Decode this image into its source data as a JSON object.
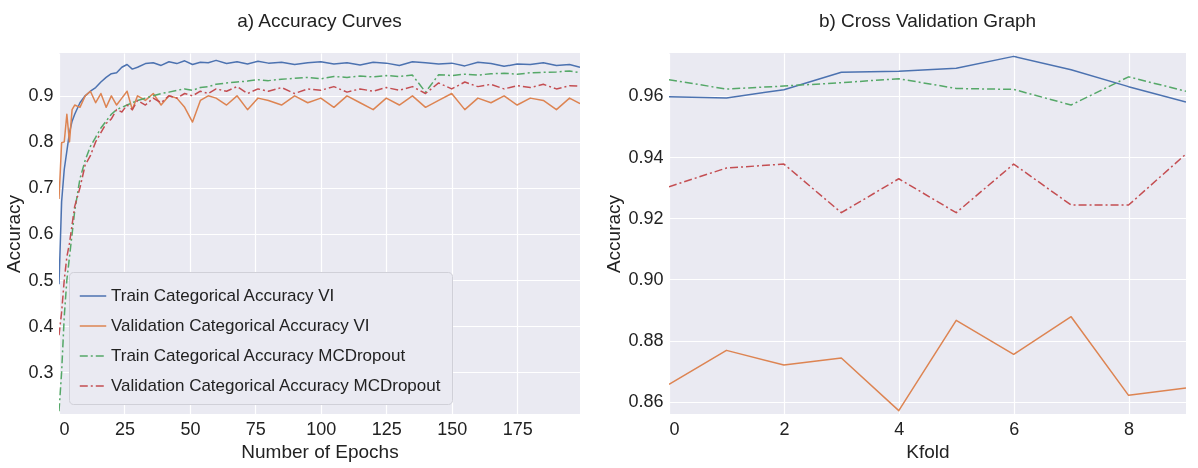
{
  "chart_data": [
    {
      "type": "line",
      "title": "a) Accuracy Curves",
      "xlabel": "Number of Epochs",
      "ylabel": "Accuracy",
      "x": [
        0,
        1,
        2,
        3,
        4,
        5,
        6,
        8,
        10,
        12,
        14,
        16,
        18,
        20,
        22,
        24,
        26,
        28,
        30,
        33,
        36,
        39,
        42,
        45,
        48,
        51,
        54,
        57,
        60,
        64,
        68,
        72,
        76,
        80,
        85,
        90,
        95,
        100,
        105,
        110,
        115,
        120,
        125,
        130,
        135,
        140,
        145,
        150,
        155,
        160,
        165,
        170,
        175,
        180,
        185,
        190,
        195,
        199
      ],
      "series": [
        {
          "name": "Train Categorical Accuracy VI",
          "color": "#4c72b0",
          "line_style": "solid",
          "values": [
            0.491,
            0.67,
            0.74,
            0.78,
            0.82,
            0.845,
            0.86,
            0.885,
            0.9,
            0.91,
            0.918,
            0.93,
            0.94,
            0.948,
            0.95,
            0.962,
            0.968,
            0.958,
            0.962,
            0.97,
            0.972,
            0.966,
            0.974,
            0.97,
            0.976,
            0.968,
            0.973,
            0.972,
            0.977,
            0.97,
            0.974,
            0.969,
            0.975,
            0.971,
            0.973,
            0.968,
            0.972,
            0.974,
            0.969,
            0.972,
            0.967,
            0.973,
            0.971,
            0.966,
            0.974,
            0.972,
            0.969,
            0.971,
            0.965,
            0.973,
            0.97,
            0.964,
            0.969,
            0.968,
            0.972,
            0.966,
            0.968,
            0.962
          ]
        },
        {
          "name": "Validation Categorical Accuracy VI",
          "color": "#dd8452",
          "line_style": "solid",
          "values": [
            0.676,
            0.798,
            0.8,
            0.86,
            0.8,
            0.87,
            0.88,
            0.875,
            0.9,
            0.91,
            0.885,
            0.905,
            0.875,
            0.9,
            0.88,
            0.895,
            0.91,
            0.87,
            0.9,
            0.89,
            0.905,
            0.88,
            0.9,
            0.895,
            0.875,
            0.843,
            0.89,
            0.9,
            0.895,
            0.88,
            0.9,
            0.87,
            0.895,
            0.89,
            0.88,
            0.9,
            0.885,
            0.895,
            0.875,
            0.9,
            0.885,
            0.87,
            0.895,
            0.88,
            0.9,
            0.875,
            0.89,
            0.905,
            0.87,
            0.895,
            0.885,
            0.9,
            0.88,
            0.895,
            0.89,
            0.87,
            0.895,
            0.883
          ]
        },
        {
          "name": "Train Categorical Accuracy MCDropout",
          "color": "#55a868",
          "line_style": "dashed",
          "values": [
            0.215,
            0.3,
            0.42,
            0.5,
            0.55,
            0.6,
            0.65,
            0.72,
            0.76,
            0.79,
            0.81,
            0.83,
            0.845,
            0.86,
            0.87,
            0.875,
            0.88,
            0.885,
            0.89,
            0.895,
            0.9,
            0.905,
            0.908,
            0.912,
            0.915,
            0.912,
            0.918,
            0.92,
            0.925,
            0.928,
            0.93,
            0.932,
            0.935,
            0.933,
            0.936,
            0.938,
            0.94,
            0.937,
            0.942,
            0.94,
            0.943,
            0.941,
            0.944,
            0.942,
            0.945,
            0.908,
            0.946,
            0.944,
            0.947,
            0.945,
            0.948,
            0.949,
            0.947,
            0.95,
            0.951,
            0.952,
            0.954,
            0.95
          ]
        },
        {
          "name": "Validation Categorical Accuracy MCDropout",
          "color": "#c44e52",
          "line_style": "dashed",
          "values": [
            0.38,
            0.43,
            0.5,
            0.55,
            0.58,
            0.62,
            0.66,
            0.7,
            0.75,
            0.77,
            0.8,
            0.82,
            0.84,
            0.85,
            0.87,
            0.865,
            0.88,
            0.87,
            0.89,
            0.88,
            0.895,
            0.885,
            0.9,
            0.895,
            0.905,
            0.9,
            0.91,
            0.905,
            0.915,
            0.91,
            0.92,
            0.905,
            0.915,
            0.91,
            0.918,
            0.905,
            0.915,
            0.912,
            0.92,
            0.908,
            0.915,
            0.91,
            0.918,
            0.912,
            0.92,
            0.905,
            0.928,
            0.915,
            0.93,
            0.92,
            0.925,
            0.915,
            0.922,
            0.918,
            0.925,
            0.915,
            0.922,
            0.921
          ]
        }
      ],
      "xlim": [
        0,
        199
      ],
      "xticks": [
        0,
        25,
        50,
        75,
        100,
        125,
        150,
        175
      ],
      "ylim": [
        0.209,
        0.993
      ],
      "yticks": [
        0.3,
        0.4,
        0.5,
        0.6,
        0.7,
        0.8,
        0.9
      ],
      "grid": true,
      "legend": "bottom left"
    },
    {
      "type": "line",
      "title": "b) Cross Validation Graph",
      "xlabel": "Kfold",
      "ylabel": "Accuracy",
      "x": [
        0,
        1,
        2,
        3,
        4,
        5,
        6,
        7,
        8,
        9
      ],
      "series": [
        {
          "color": "#4c72b0",
          "line_style": "solid",
          "values": [
            0.9597,
            0.9593,
            0.962,
            0.9677,
            0.968,
            0.969,
            0.9729,
            0.9685,
            0.963,
            0.958
          ]
        },
        {
          "color": "#dd8452",
          "line_style": "solid",
          "values": [
            0.8657,
            0.8768,
            0.872,
            0.8743,
            0.8571,
            0.8866,
            0.8755,
            0.8878,
            0.8621,
            0.8645
          ]
        },
        {
          "color": "#55a868",
          "line_style": "dashed",
          "values": [
            0.9653,
            0.9622,
            0.9632,
            0.9643,
            0.9656,
            0.9624,
            0.9621,
            0.957,
            0.9662,
            0.9615
          ]
        },
        {
          "color": "#c44e52",
          "line_style": "dashed",
          "values": [
            0.9303,
            0.9364,
            0.9377,
            0.9218,
            0.9329,
            0.9218,
            0.9377,
            0.9243,
            0.9243,
            0.941
          ]
        }
      ],
      "xlim": [
        0,
        9
      ],
      "xticks": [
        0,
        2,
        4,
        6,
        8
      ],
      "ylim": [
        0.856,
        0.974
      ],
      "yticks": [
        0.86,
        0.88,
        {
          "value": 0.9,
          "label": "0.90"
        },
        0.92,
        0.94,
        0.96
      ],
      "grid": true
    }
  ]
}
